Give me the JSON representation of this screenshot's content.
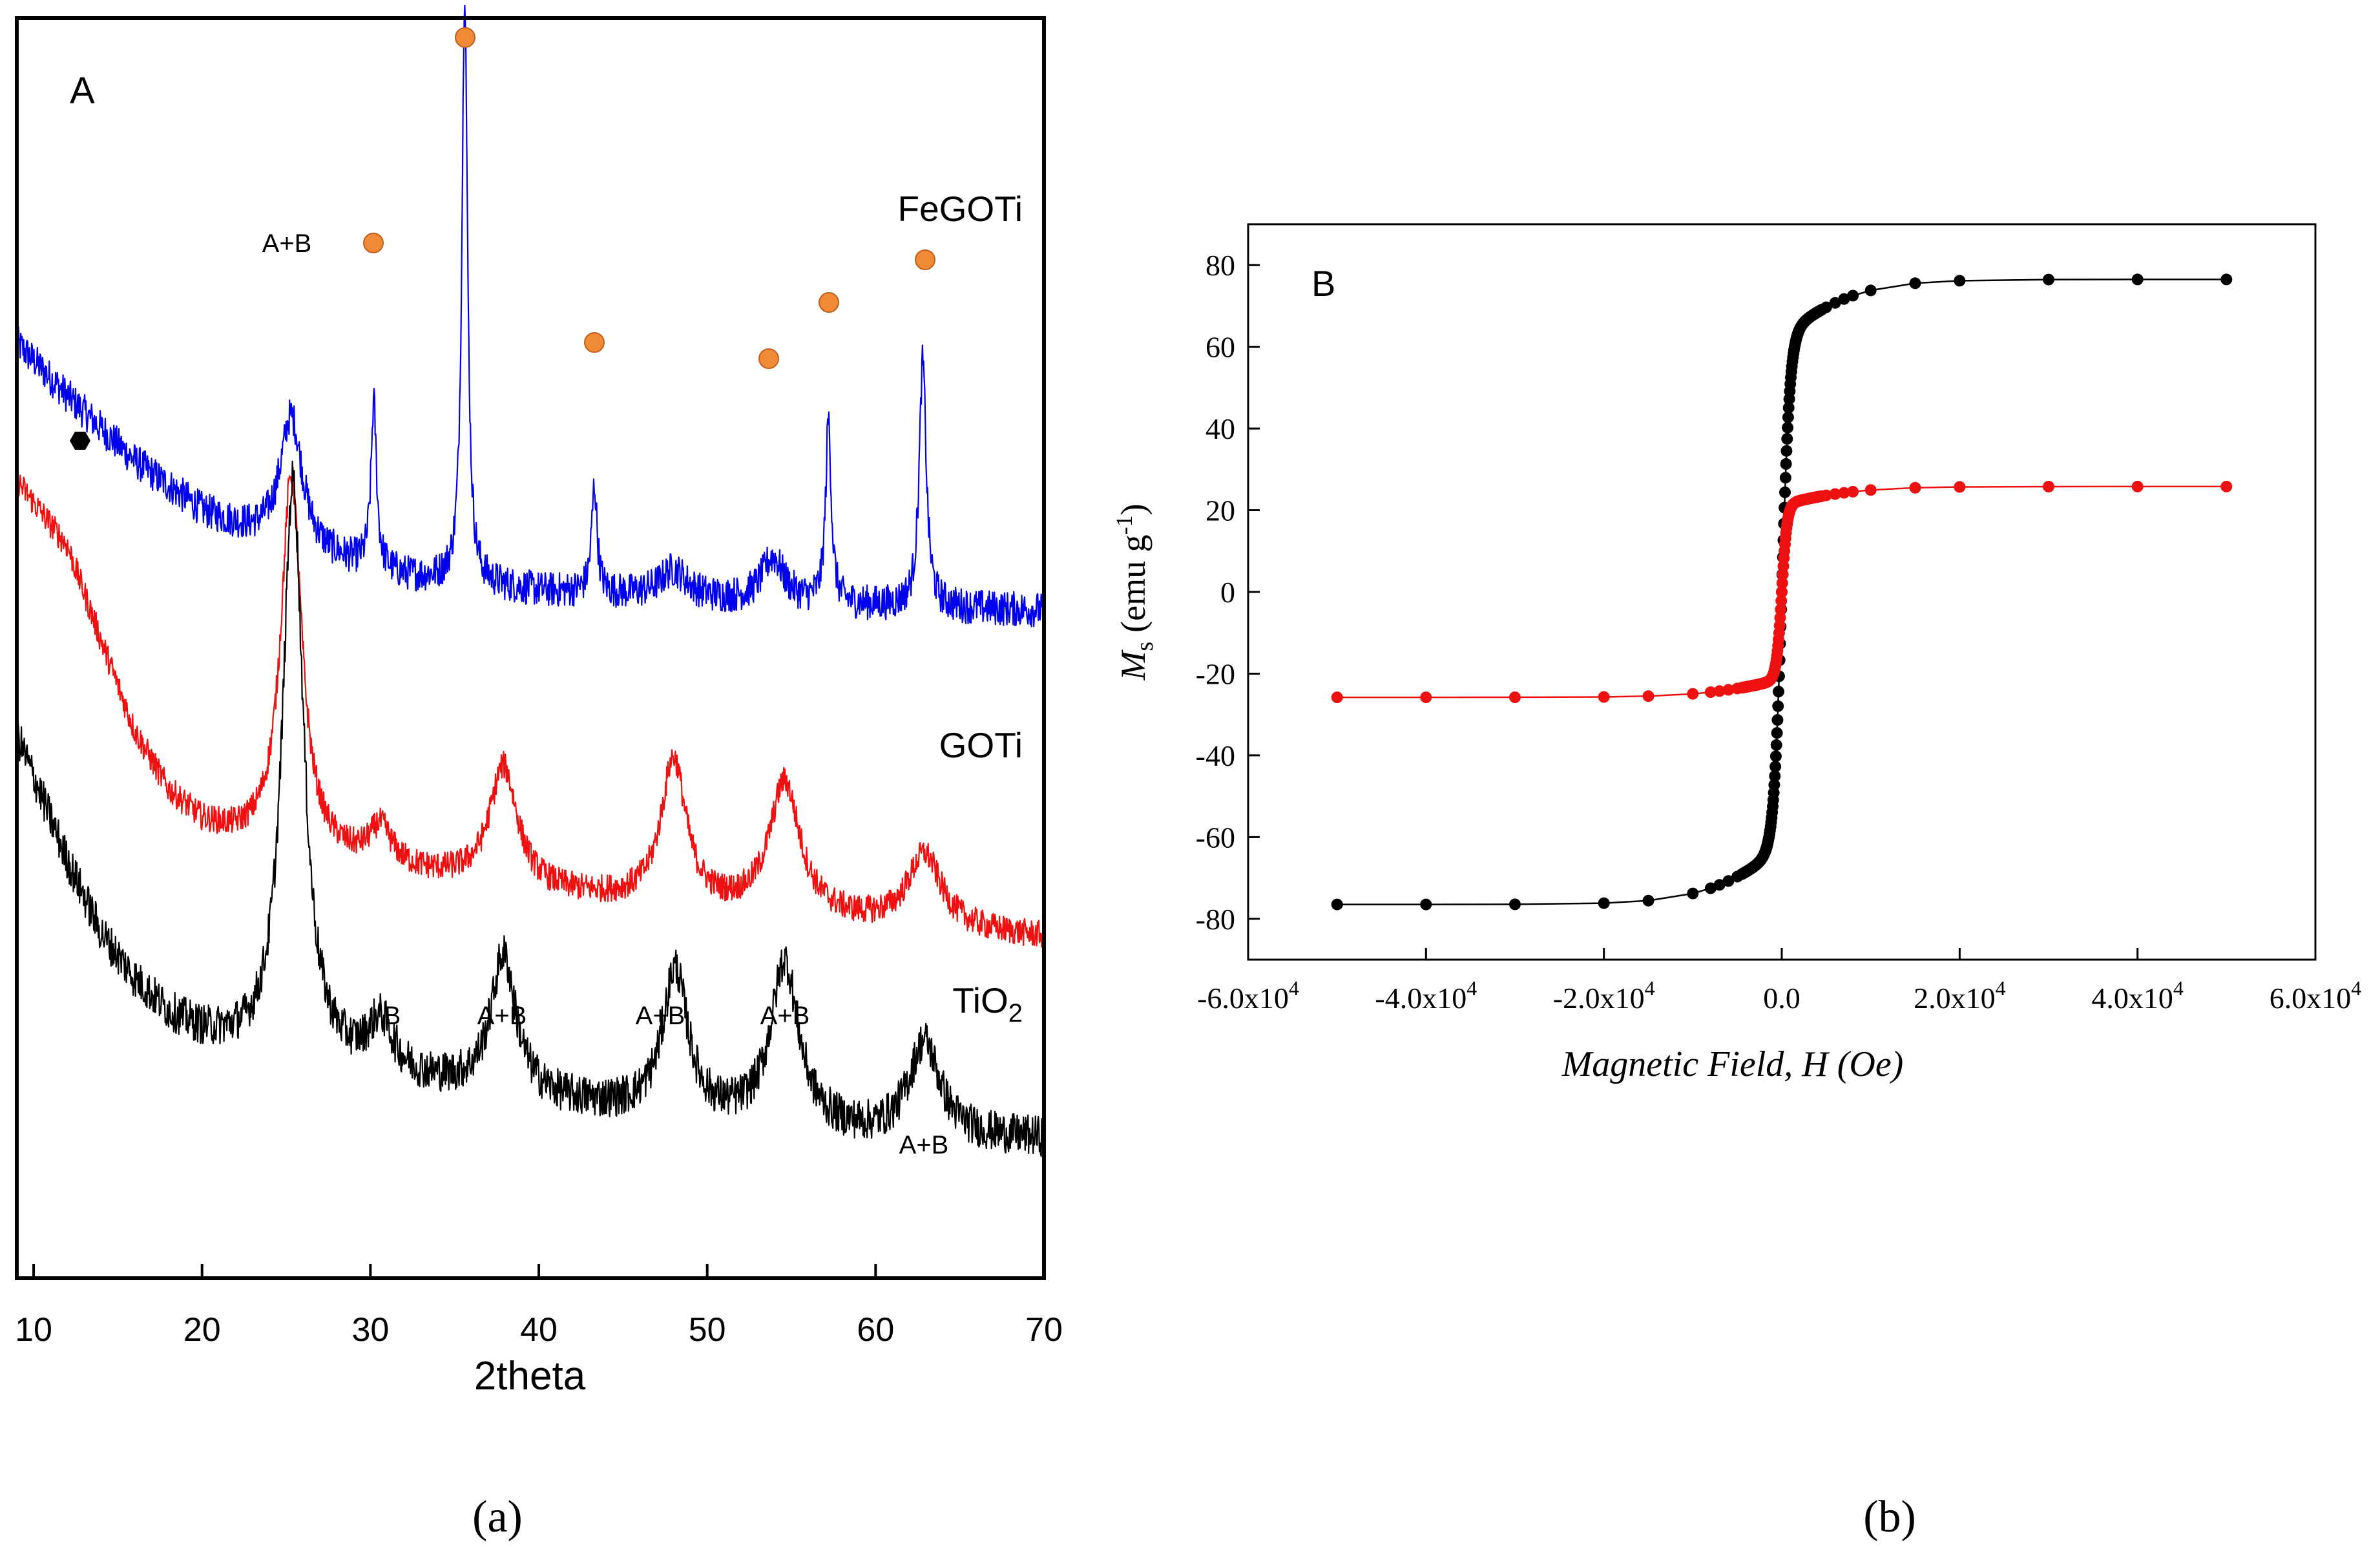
{
  "panel_a": {
    "panel_letter": "A",
    "caption": "(a)",
    "chart_data": {
      "type": "line",
      "title": "",
      "xlabel": "2theta",
      "ylabel": "",
      "xlim": [
        9,
        70
      ],
      "ylim": [
        0,
        1000
      ],
      "grid": false,
      "x_ticks": [
        10,
        20,
        30,
        40,
        50,
        60,
        70
      ],
      "series": [
        {
          "name": "FeGOTi",
          "color": "#0000ee",
          "baseline": [
            [
              9,
              742
            ],
            [
              12,
              700
            ],
            [
              16,
              648
            ],
            [
              20,
              608
            ],
            [
              23,
              590
            ],
            [
              27,
              572
            ],
            [
              32,
              556
            ],
            [
              40,
              545
            ],
            [
              50,
              538
            ],
            [
              60,
              533
            ],
            [
              70,
              530
            ]
          ],
          "peaks": [
            [
              25.3,
              105,
              0.8
            ],
            [
              30.2,
              130,
              0.2
            ],
            [
              35.6,
              470,
              0.2
            ],
            [
              43.3,
              85,
              0.2
            ],
            [
              48,
              22,
              1.0
            ],
            [
              53.9,
              35,
              0.8
            ],
            [
              57.2,
              145,
              0.2
            ],
            [
              62.8,
              195,
              0.25
            ]
          ],
          "noise": 14
        },
        {
          "name": "GOTi",
          "color": "#ee1111",
          "baseline": [
            [
              9,
              632
            ],
            [
              12,
              580
            ],
            [
              14,
              505
            ],
            [
              16,
              432
            ],
            [
              18,
              385
            ],
            [
              20,
              360
            ],
            [
              22,
              348
            ],
            [
              25,
              338
            ],
            [
              30,
              325
            ],
            [
              40,
              305
            ],
            [
              50,
              292
            ],
            [
              60,
              280
            ],
            [
              70,
              270
            ]
          ],
          "peaks": [
            [
              25.3,
              300,
              0.75
            ],
            [
              30.6,
              30,
              0.8
            ],
            [
              37.9,
              95,
              1.0
            ],
            [
              48,
              115,
              0.9
            ],
            [
              54.6,
              105,
              1.1
            ],
            [
              62.9,
              58,
              1.2
            ]
          ],
          "noise": 11
        },
        {
          "name": "TiO2",
          "color": "#000000",
          "baseline": [
            [
              9,
              430
            ],
            [
              12,
              330
            ],
            [
              14,
              272
            ],
            [
              16,
              235
            ],
            [
              18,
              208
            ],
            [
              20,
              192
            ],
            [
              23,
              178
            ],
            [
              27,
              168
            ],
            [
              30,
              160
            ],
            [
              40,
              140
            ],
            [
              50,
              125
            ],
            [
              60,
              112
            ],
            [
              70,
              110
            ]
          ],
          "peaks": [
            [
              25.4,
              460,
              0.75
            ],
            [
              30.6,
              40,
              0.9
            ],
            [
              37.9,
              110,
              0.9
            ],
            [
              48.1,
              115,
              0.9
            ],
            [
              54.6,
              130,
              1.0
            ],
            [
              62.9,
              75,
              1.1
            ]
          ],
          "noise": 16
        }
      ],
      "labels": [
        "FeGOTi",
        "GOTi",
        "TiO"
      ],
      "tio2_subscript": "2",
      "annotations": [
        "A+B",
        "B",
        "A+B",
        "A+B",
        "A+B",
        "A+B"
      ],
      "phase_marker_positions_2theta": [
        30.2,
        35.6,
        43.3,
        53.6,
        57.2,
        62.8
      ],
      "phase_marker_color": "#f08a35",
      "hexagon_marker_2theta": 12.8
    }
  },
  "panel_b": {
    "panel_letter": "B",
    "caption": "(b)",
    "chart_data": {
      "type": "scatter",
      "title": "",
      "xlabel": "Magnetic Field, H (Oe)",
      "ylabel_main": "M",
      "ylabel_sub": "s",
      "ylabel_rest": "(emu g",
      "ylabel_sup": "-1",
      "ylabel_close": ")",
      "xlim": [
        -60000,
        60000
      ],
      "ylim": [
        -90,
        90
      ],
      "grid": false,
      "x_tick_mantissas": [
        "-6.0x10",
        "-4.0x10",
        "-2.0x10",
        "0.0",
        "2.0x10",
        "4.0x10",
        "6.0x10"
      ],
      "x_tick_values": [
        -60000,
        -40000,
        -20000,
        0,
        20000,
        40000,
        60000
      ],
      "x_tick_exponent": "4",
      "y_ticks": [
        -80,
        -60,
        -40,
        -20,
        0,
        20,
        40,
        60,
        80
      ],
      "series": [
        {
          "name": "black",
          "color": "#000000",
          "Ms": 76.5,
          "core_fraction": 0.82,
          "core_width_oe": 900,
          "tail_width_oe": 9000,
          "outer_field_points": [
            5000,
            6000,
            7000,
            8000,
            10000,
            15000,
            20000,
            30000,
            40000,
            50000
          ]
        },
        {
          "name": "red",
          "color": "#ee1111",
          "Ms": 25.8,
          "core_fraction": 0.83,
          "core_width_oe": 600,
          "tail_width_oe": 9000,
          "outer_field_points": [
            5000,
            6000,
            7000,
            8000,
            10000,
            15000,
            20000,
            30000,
            40000,
            50000
          ]
        }
      ]
    }
  }
}
